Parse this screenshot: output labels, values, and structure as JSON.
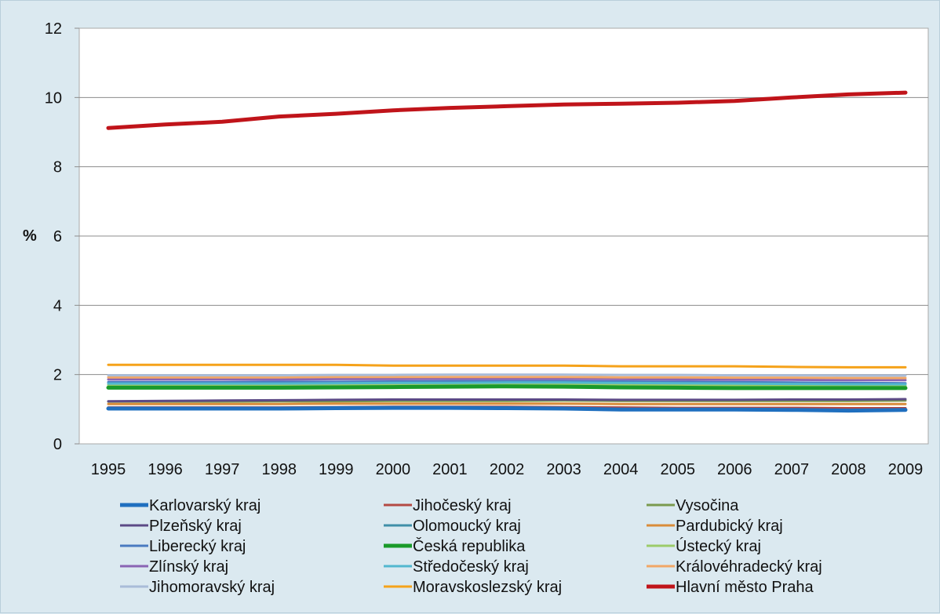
{
  "chart_data": {
    "type": "line",
    "title": "",
    "xlabel": "",
    "ylabel": "%",
    "ylim": [
      0,
      12
    ],
    "yticks": [
      0,
      2,
      4,
      6,
      8,
      10,
      12
    ],
    "grid": true,
    "legend_position": "bottom",
    "x": [
      "1995",
      "1996",
      "1997",
      "1998",
      "1999",
      "2000",
      "2001",
      "2002",
      "2003",
      "2004",
      "2005",
      "2006",
      "2007",
      "2008",
      "2009"
    ],
    "series": [
      {
        "name": "Karlovarský kraj",
        "color": "#1f6fbf",
        "bold": true,
        "values": [
          1.02,
          1.02,
          1.02,
          1.02,
          1.03,
          1.04,
          1.04,
          1.03,
          1.02,
          0.99,
          0.99,
          0.99,
          0.98,
          0.96,
          0.98
        ]
      },
      {
        "name": "Jihočeský kraj",
        "color": "#b44a44",
        "bold": false,
        "values": [
          1.05,
          1.05,
          1.05,
          1.05,
          1.06,
          1.07,
          1.07,
          1.07,
          1.06,
          1.05,
          1.04,
          1.04,
          1.04,
          1.03,
          1.03
        ]
      },
      {
        "name": "Vysočina",
        "color": "#7a9a4e",
        "bold": false,
        "values": [
          1.22,
          1.22,
          1.22,
          1.23,
          1.23,
          1.24,
          1.24,
          1.24,
          1.25,
          1.24,
          1.24,
          1.24,
          1.24,
          1.24,
          1.25
        ]
      },
      {
        "name": "Plzeňský kraj",
        "color": "#5c4a86",
        "bold": false,
        "values": [
          1.23,
          1.24,
          1.25,
          1.26,
          1.27,
          1.28,
          1.28,
          1.28,
          1.28,
          1.27,
          1.27,
          1.27,
          1.28,
          1.28,
          1.29
        ]
      },
      {
        "name": "Olomoucký kraj",
        "color": "#3f8fa8",
        "bold": false,
        "values": [
          1.64,
          1.64,
          1.65,
          1.65,
          1.66,
          1.67,
          1.68,
          1.68,
          1.68,
          1.67,
          1.66,
          1.66,
          1.66,
          1.65,
          1.65
        ]
      },
      {
        "name": "Pardubický kraj",
        "color": "#d98c3a",
        "bold": false,
        "values": [
          1.15,
          1.15,
          1.15,
          1.15,
          1.16,
          1.16,
          1.16,
          1.16,
          1.16,
          1.15,
          1.15,
          1.15,
          1.15,
          1.15,
          1.15
        ]
      },
      {
        "name": "Liberecký kraj",
        "color": "#4a7ac0",
        "bold": false,
        "values": [
          1.78,
          1.78,
          1.78,
          1.79,
          1.79,
          1.8,
          1.81,
          1.81,
          1.81,
          1.8,
          1.79,
          1.78,
          1.77,
          1.76,
          1.75
        ]
      },
      {
        "name": "Česká republika",
        "color": "#1a9a2a",
        "bold": true,
        "values": [
          1.62,
          1.62,
          1.62,
          1.62,
          1.63,
          1.64,
          1.65,
          1.66,
          1.65,
          1.63,
          1.62,
          1.61,
          1.61,
          1.61,
          1.61
        ]
      },
      {
        "name": "Ústecký kraj",
        "color": "#9ccc6a",
        "bold": false,
        "values": [
          1.7,
          1.7,
          1.71,
          1.71,
          1.72,
          1.72,
          1.73,
          1.73,
          1.72,
          1.71,
          1.7,
          1.69,
          1.69,
          1.68,
          1.68
        ]
      },
      {
        "name": "Zlínský kraj",
        "color": "#8a64b4",
        "bold": false,
        "values": [
          1.86,
          1.86,
          1.86,
          1.86,
          1.87,
          1.87,
          1.88,
          1.88,
          1.88,
          1.87,
          1.86,
          1.85,
          1.85,
          1.84,
          1.84
        ]
      },
      {
        "name": "Středočeský kraj",
        "color": "#52b8cf",
        "bold": false,
        "values": [
          1.74,
          1.74,
          1.74,
          1.74,
          1.75,
          1.76,
          1.76,
          1.77,
          1.77,
          1.76,
          1.75,
          1.74,
          1.73,
          1.72,
          1.72
        ]
      },
      {
        "name": "Královéhradecký kraj",
        "color": "#f2a766",
        "bold": false,
        "values": [
          1.92,
          1.92,
          1.92,
          1.92,
          1.93,
          1.93,
          1.93,
          1.93,
          1.93,
          1.92,
          1.92,
          1.91,
          1.91,
          1.9,
          1.9
        ]
      },
      {
        "name": "Jihomoravský kraj",
        "color": "#a9bcd8",
        "bold": false,
        "values": [
          1.98,
          1.98,
          1.98,
          1.98,
          1.99,
          1.99,
          2.0,
          2.0,
          2.0,
          1.99,
          1.99,
          1.98,
          1.98,
          1.97,
          1.97
        ]
      },
      {
        "name": "Moravskoslezský kraj",
        "color": "#f5a21a",
        "bold": false,
        "values": [
          2.28,
          2.28,
          2.28,
          2.28,
          2.28,
          2.26,
          2.26,
          2.26,
          2.26,
          2.24,
          2.24,
          2.24,
          2.22,
          2.21,
          2.21
        ]
      },
      {
        "name": "Hlavní město Praha",
        "color": "#c0141a",
        "bold": true,
        "values": [
          9.12,
          9.22,
          9.3,
          9.45,
          9.53,
          9.63,
          9.7,
          9.75,
          9.8,
          9.82,
          9.85,
          9.9,
          10.0,
          10.09,
          10.14
        ]
      }
    ]
  }
}
